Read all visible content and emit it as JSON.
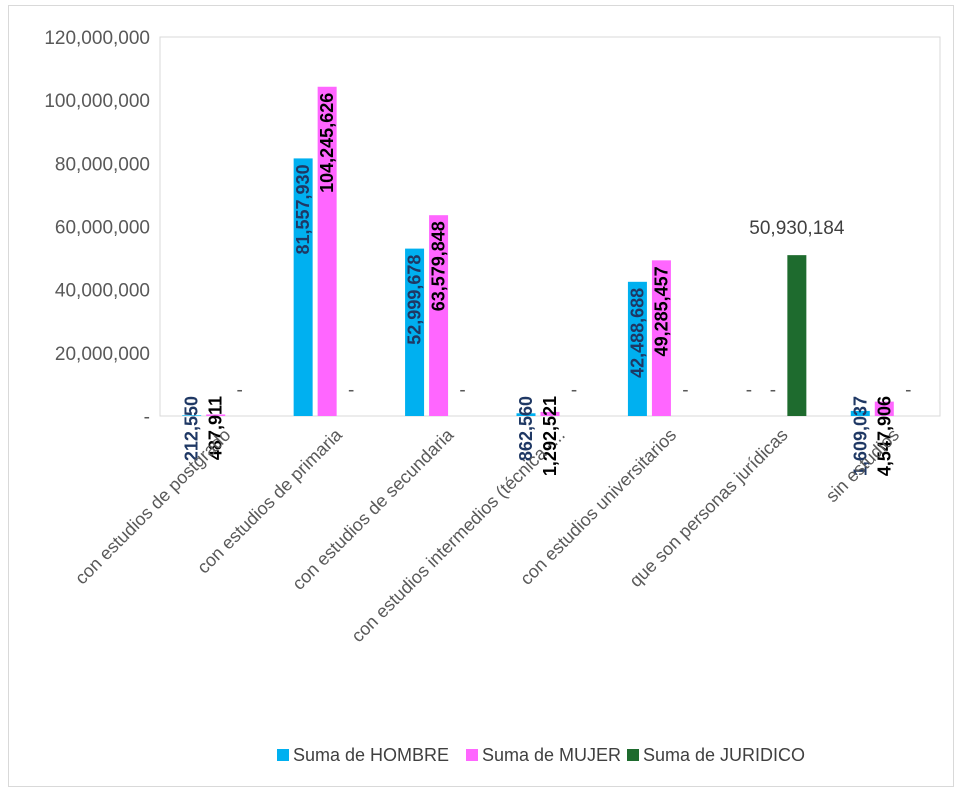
{
  "chart_data": {
    "type": "bar",
    "categories": [
      "con estudios de postgrado",
      "con estudios de primaria",
      "con estudios de secundaria",
      "con estudios intermedios (técnica -...",
      "con estudios universitarios",
      "que son personas jurídicas",
      "sin estudios"
    ],
    "series": [
      {
        "name": "Suma de HOMBRE",
        "color": "#00b0f0",
        "label_color": "#1f3864",
        "values": [
          212550,
          81557930,
          52999678,
          862560,
          42488688,
          0,
          1609037
        ],
        "labels": [
          "212,550",
          "81,557,930",
          "52,999,678",
          "862,560",
          "42,488,688",
          "-",
          "1,609,037"
        ]
      },
      {
        "name": "Suma de MUJER",
        "color": "#ff66ff",
        "label_color": "#000000",
        "values": [
          487911,
          104245626,
          63579848,
          1292521,
          49285457,
          0,
          4547906
        ],
        "labels": [
          "487,911",
          "104,245,626",
          "63,579,848",
          "1,292,521",
          "49,285,457",
          "-",
          "4,547,906"
        ]
      },
      {
        "name": "Suma de JURIDICO",
        "color": "#1e6b2e",
        "label_color": "#404040",
        "values": [
          0,
          0,
          0,
          0,
          0,
          50930184,
          0
        ],
        "labels": [
          "-",
          "-",
          "-",
          "-",
          "-",
          "50,930,184",
          "-"
        ]
      }
    ],
    "y_ticks": [
      "120,000,000",
      "100,000,000",
      "80,000,000",
      "60,000,000",
      "40,000,000",
      "20,000,000",
      "-"
    ],
    "ylim": [
      0,
      120000000
    ],
    "legend_position": "bottom",
    "grid": false
  }
}
